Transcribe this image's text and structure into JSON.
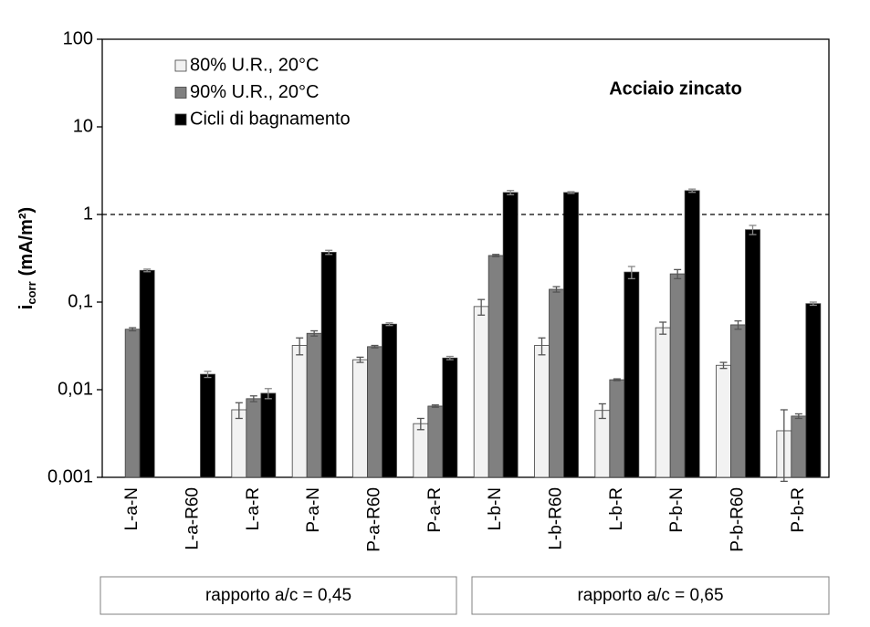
{
  "chart_data": {
    "type": "bar",
    "annotation": "Acciaio zincato",
    "ylabel": "i",
    "ylabel_sub": "corr",
    "ylabel_unit": "(mA/m²)",
    "log_scale": true,
    "ylim": [
      0.001,
      100
    ],
    "yticks": [
      {
        "value": 0.001,
        "label": "0,001"
      },
      {
        "value": 0.01,
        "label": "0,01"
      },
      {
        "value": 0.1,
        "label": "0,1"
      },
      1,
      10,
      100
    ],
    "reference_line": 1,
    "legend": "upper left",
    "categories": [
      "L-a-N",
      "L-a-R60",
      "L-a-R",
      "P-a-N",
      "P-a-R60",
      "P-a-R",
      "L-b-N",
      "L-b-R60",
      "L-b-R",
      "P-b-N",
      "P-b-R60",
      "P-b-R"
    ],
    "groups": [
      {
        "label": "rapporto a/c = 0,45",
        "from": "L-a-N",
        "to": "P-a-R"
      },
      {
        "label": "rapporto a/c = 0,65",
        "from": "L-b-N",
        "to": "P-b-R"
      }
    ],
    "series": [
      {
        "name": "80% U.R., 20°C",
        "color": "#f2f2f2",
        "values": [
          null,
          null,
          0.0059,
          0.032,
          0.022,
          0.0041,
          0.089,
          0.032,
          0.0058,
          0.051,
          0.019,
          0.0034
        ],
        "errors": [
          null,
          null,
          0.0012,
          0.007,
          0.0015,
          0.0006,
          0.018,
          0.007,
          0.0011,
          0.008,
          0.0015,
          0.0025
        ]
      },
      {
        "name": "90% U.R., 20°C",
        "color": "#808080",
        "values": [
          0.049,
          null,
          0.0079,
          0.044,
          0.031,
          0.0065,
          0.34,
          0.14,
          0.013,
          0.21,
          0.055,
          0.005
        ],
        "errors": [
          0.002,
          null,
          0.0006,
          0.003,
          0.001,
          0.0002,
          0.01,
          0.01,
          0.0003,
          0.025,
          0.006,
          0.0003
        ]
      },
      {
        "name": "Cicli di bagnamento",
        "color": "#000000",
        "values": [
          0.23,
          0.015,
          0.0091,
          0.37,
          0.056,
          0.023,
          1.78,
          1.78,
          0.22,
          1.87,
          0.67,
          0.096
        ],
        "errors": [
          0.008,
          0.0012,
          0.0012,
          0.02,
          0.002,
          0.001,
          0.1,
          0.04,
          0.035,
          0.08,
          0.08,
          0.004
        ]
      }
    ]
  }
}
